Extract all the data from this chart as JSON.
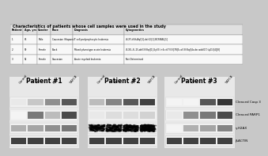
{
  "title": "Characteristics of patients whose cell samples were used in the study",
  "table_headers": [
    "Patient",
    "Age, yrs",
    "Gender",
    "Race",
    "Diagnosis",
    "Cytogenetics"
  ],
  "table_rows": [
    [
      "1",
      "65",
      "Male",
      "Caucasian (Hispanic)",
      "T cell prolymphocytic leukemia",
      "46,XY,t(6h;Aq)[1],del(2)[1],BCR/ABL[1]"
    ],
    [
      "2",
      "59",
      "Female",
      "Black",
      "Mixed phenotype acute leukemia",
      "45,XX,-8,-15,del(3)(8q)[1],5yl(3),+4=t(7)(3)[7B]5,cdl(3)(8q)[4s,der,add(17)(q21)[4][8]"
    ],
    [
      "3",
      "52",
      "Female",
      "Caucasian",
      "Acute myeloid leukemia",
      "Not Determined"
    ]
  ],
  "patients": [
    "Patient #1",
    "Patient #2",
    "Patient #3"
  ],
  "lanes": [
    "Control",
    "TA",
    "FCB",
    "TAFCB"
  ],
  "markers": [
    "Cleaved Casp 3",
    "Cleaved PARP1",
    "γ-H2AX",
    "β-ACTIN"
  ],
  "bg_top": "#1a1a1a",
  "bg_bottom": "#000000",
  "panel_bg": "#d0d0d0",
  "blot_bg_light": "#e8e8e8",
  "blot_bg_white": "#f0f0f0",
  "blot_patterns": {
    "0": {
      "0": [
        0.1,
        0.25,
        0.5,
        0.75
      ],
      "1": [
        0.05,
        0.6,
        0.3,
        0.8
      ],
      "2": [
        0.35,
        0.4,
        0.5,
        0.6
      ],
      "3": [
        0.85,
        0.85,
        0.85,
        0.85
      ]
    },
    "1": {
      "0": [
        0.3,
        0.55,
        0.75,
        0.85
      ],
      "1": [
        0.1,
        0.15,
        0.15,
        0.2
      ],
      "2": [
        0.55,
        0.6,
        0.85,
        0.92
      ],
      "3": [
        0.85,
        0.85,
        0.85,
        0.85
      ]
    },
    "2": {
      "0": [
        0.05,
        0.05,
        0.75,
        0.9
      ],
      "1": [
        0.1,
        0.5,
        0.6,
        0.8
      ],
      "2": [
        0.05,
        0.35,
        0.4,
        0.55
      ],
      "3": [
        0.85,
        0.85,
        0.85,
        0.85
      ]
    }
  }
}
